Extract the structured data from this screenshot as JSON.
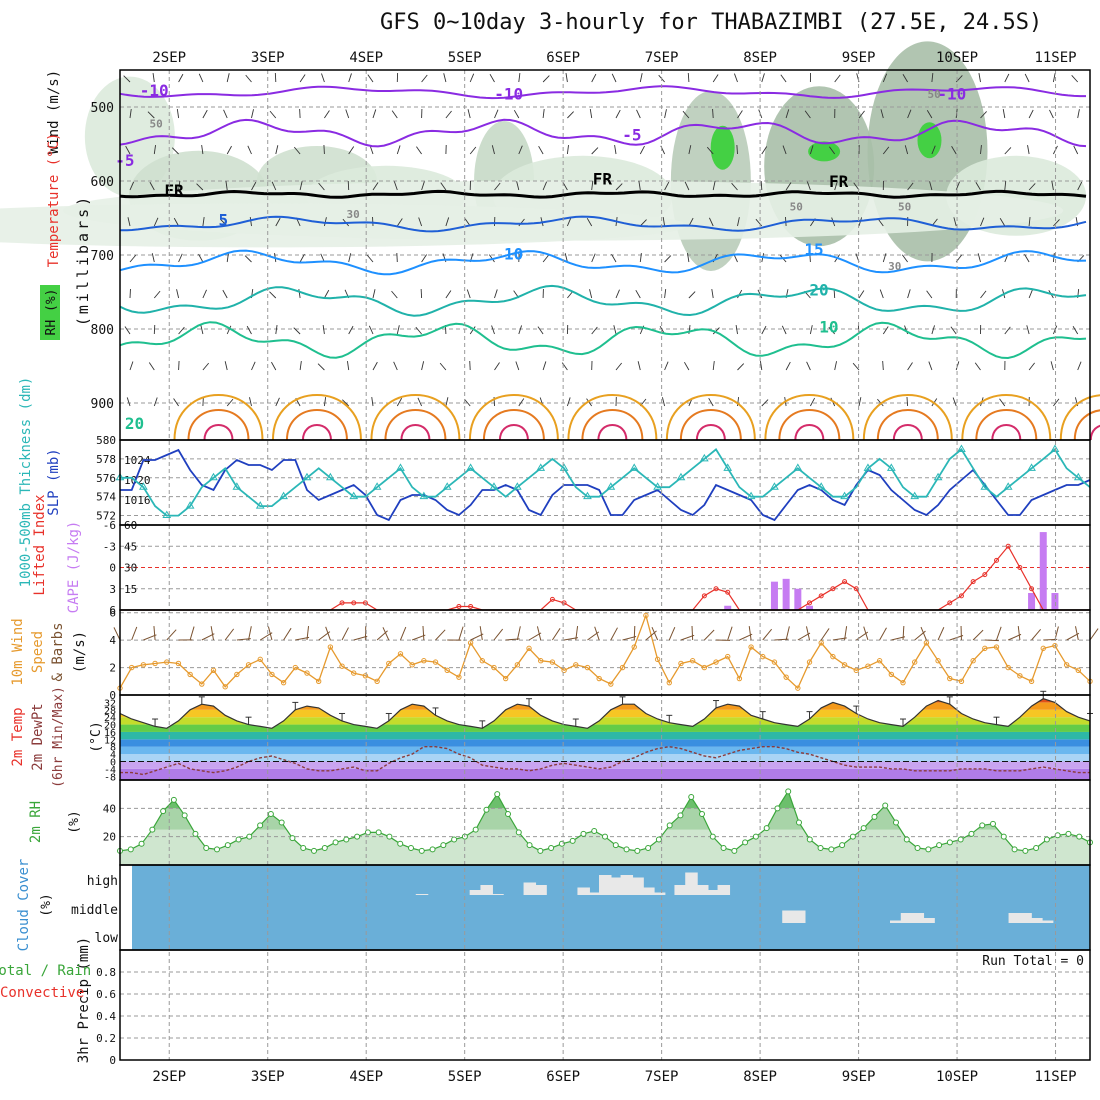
{
  "title": "GFS 0~10day 3-hourly for THABAZIMBI (27.5E, 24.5S)",
  "dates": [
    "2SEP",
    "3SEP",
    "4SEP",
    "5SEP",
    "6SEP",
    "7SEP",
    "8SEP",
    "9SEP",
    "10SEP",
    "11SEP"
  ],
  "colors": {
    "frame": "#000000",
    "grid": "#9a9a9a",
    "slp": "#1f3fbf",
    "thickness": "#2bb7b7",
    "lifted_index": "#e8312a",
    "cape": "#c67cf2",
    "wind": "#e69a2e",
    "barb": "#7a5230",
    "rh": "#3aa63a",
    "rh_fill": "#cfe6cf",
    "dewpoint": "#8b3b3b",
    "cloud_bg": "#6aafd8",
    "cloud_block": "#e8e8e8",
    "temp_label": "#e8312a",
    "rain_label": "#3aa63a",
    "conv_label": "#e8312a"
  },
  "chart_data": [
    {
      "id": "upper_air",
      "type": "contour",
      "ylabel": "(millibars)",
      "side_labels": [
        "Wind (m/s)",
        "Temperature (°C)",
        "RH (%)"
      ],
      "ylim": [
        950,
        450
      ],
      "yticks": [
        500,
        600,
        700,
        800,
        900
      ],
      "contour_labels": [
        "-10",
        "-10",
        "-5",
        "-5",
        "-10",
        "5",
        "10",
        "15",
        "20",
        "FR",
        "FR",
        "FR",
        "20",
        "10",
        "50",
        "50",
        "50",
        "50",
        "30",
        "30"
      ]
    },
    {
      "id": "slp_thickness",
      "type": "line",
      "ylabel_left": "1000-500mb Thickness (dm)",
      "ylabel_right": "SLP (mb)",
      "yticks_left": [
        572,
        574,
        576,
        578,
        580
      ],
      "yticks_right": [
        1016,
        1020,
        1024
      ],
      "series": [
        {
          "name": "SLP (mb)",
          "values": [
            1018,
            1018,
            1024,
            1024,
            1025,
            1026,
            1022,
            1019,
            1018,
            1022,
            1024,
            1023,
            1023,
            1022,
            1024,
            1024,
            1018,
            1016,
            1017,
            1018,
            1019,
            1017,
            1013,
            1012,
            1016,
            1017,
            1017,
            1016,
            1014,
            1013,
            1015,
            1018,
            1018,
            1019,
            1018,
            1014,
            1013,
            1017,
            1019,
            1019,
            1019,
            1018,
            1013,
            1013,
            1016,
            1017,
            1018,
            1016,
            1014,
            1013,
            1015,
            1019,
            1018,
            1017,
            1016,
            1013,
            1012,
            1015,
            1018,
            1019,
            1018,
            1016,
            1015,
            1019,
            1022,
            1021,
            1018,
            1016,
            1014,
            1013,
            1015,
            1018,
            1020,
            1022,
            1019,
            1016,
            1013,
            1013,
            1016,
            1017,
            1018,
            1019,
            1019,
            1020
          ]
        },
        {
          "name": "1000-500mb Thickness (dm)",
          "values": [
            576,
            576,
            575,
            573,
            572,
            572,
            573,
            575,
            576,
            577,
            575,
            574,
            573,
            573,
            574,
            575,
            576,
            577,
            576,
            575,
            574,
            574,
            575,
            576,
            577,
            575,
            574,
            574,
            575,
            576,
            577,
            576,
            575,
            574,
            575,
            576,
            577,
            578,
            577,
            575,
            574,
            574,
            575,
            576,
            577,
            576,
            575,
            575,
            576,
            577,
            578,
            579,
            577,
            575,
            574,
            574,
            575,
            576,
            577,
            576,
            575,
            574,
            574,
            575,
            577,
            578,
            577,
            575,
            574,
            574,
            576,
            578,
            579,
            577,
            575,
            574,
            575,
            576,
            577,
            578,
            579,
            577,
            576,
            575
          ]
        }
      ]
    },
    {
      "id": "cape_li",
      "type": "bar",
      "ylabel_left": "Lifted Index",
      "ylabel_right": "CAPE (J/kg)",
      "yticks_left": [
        -6,
        -3,
        0,
        3,
        6
      ],
      "yticks_right": [
        15,
        30,
        45,
        60
      ],
      "series": [
        {
          "name": "Lifted Index",
          "values": [
            6,
            6,
            6,
            6,
            6,
            6,
            6,
            6,
            6,
            6,
            6,
            6,
            6,
            6,
            6,
            6,
            6,
            6,
            6,
            5,
            5,
            5,
            6,
            6,
            6,
            6,
            6,
            6,
            6,
            5.5,
            5.5,
            6,
            6,
            6,
            6,
            6,
            6,
            4.5,
            5,
            6,
            6,
            6,
            6,
            6,
            6,
            6,
            6,
            6,
            6,
            6,
            4,
            3,
            3.5,
            6,
            6,
            6,
            6,
            6,
            6,
            5,
            4,
            3,
            2,
            3,
            6,
            6,
            6,
            6,
            6,
            6,
            6,
            5,
            4,
            2,
            1,
            -1,
            -3,
            0,
            3,
            6,
            6,
            6,
            6,
            6
          ]
        },
        {
          "name": "CAPE (J/kg)",
          "values": [
            0,
            0,
            0,
            0,
            0,
            0,
            0,
            0,
            0,
            0,
            0,
            0,
            0,
            0,
            0,
            0,
            0,
            0,
            0,
            0,
            0,
            0,
            0,
            0,
            0,
            0,
            0,
            0,
            0,
            0,
            0,
            0,
            0,
            0,
            0,
            0,
            0,
            0,
            0,
            0,
            0,
            0,
            0,
            0,
            0,
            0,
            0,
            0,
            0,
            0,
            0,
            0,
            3,
            0,
            0,
            0,
            20,
            22,
            15,
            3,
            0,
            0,
            0,
            0,
            0,
            0,
            0,
            0,
            0,
            0,
            0,
            0,
            0,
            0,
            0,
            0,
            0,
            0,
            12,
            55,
            12,
            0,
            0,
            0
          ]
        }
      ]
    },
    {
      "id": "wind10m",
      "type": "line",
      "ylabel": "10m Wind Speed & Barbs (m/s)",
      "yticks": [
        0,
        2,
        4,
        6
      ],
      "series": [
        {
          "name": "10m Wind Speed",
          "values": [
            0.5,
            2,
            2.2,
            2.3,
            2.4,
            2.3,
            1.5,
            0.8,
            1.8,
            0.6,
            1.5,
            2.2,
            2.6,
            1.5,
            0.9,
            2,
            1.6,
            1,
            3.5,
            2.1,
            1.6,
            1.4,
            1,
            2.3,
            3,
            2.2,
            2.5,
            2.4,
            1.8,
            1.3,
            3.8,
            2.5,
            2,
            1.2,
            2.2,
            3.4,
            2.5,
            2.4,
            1.8,
            2.2,
            2,
            1.2,
            0.8,
            2,
            3.5,
            5.8,
            2.6,
            0.9,
            2.3,
            2.5,
            2,
            2.4,
            2.8,
            1.2,
            3.5,
            2.8,
            2.4,
            1.3,
            0.5,
            2.4,
            3.8,
            2.8,
            2.2,
            1.8,
            2.1,
            2.5,
            1.5,
            0.9,
            2.4,
            3.8,
            2.5,
            1.2,
            1,
            2.5,
            3.4,
            3.5,
            2,
            1.4,
            1,
            3.4,
            3.6,
            2.2,
            1.8,
            1
          ]
        }
      ]
    },
    {
      "id": "temp2m",
      "type": "area",
      "ylabel": "2m Temp 2m DewPt (6hr Min/Max) (°C)",
      "yticks": [
        -8,
        -4,
        0,
        4,
        8,
        12,
        16,
        20,
        24,
        28,
        32
      ],
      "series": [
        {
          "name": "2m Temp",
          "values": [
            26,
            23,
            21,
            19,
            18,
            22,
            28,
            31,
            30,
            25,
            22,
            20,
            19,
            18,
            22,
            28,
            30,
            29,
            25,
            22,
            20,
            19,
            18,
            22,
            28,
            31,
            30,
            25,
            22,
            20,
            19,
            18,
            22,
            28,
            31,
            30,
            25,
            22,
            20,
            19,
            18,
            22,
            28,
            31,
            31,
            26,
            23,
            21,
            20,
            19,
            23,
            29,
            31,
            30,
            25,
            23,
            21,
            20,
            19,
            23,
            29,
            32,
            30,
            26,
            23,
            21,
            20,
            19,
            24,
            30,
            33,
            31,
            26,
            23,
            21,
            20,
            19,
            24,
            30,
            34,
            32,
            27,
            24,
            22
          ]
        },
        {
          "name": "2m DewPt",
          "values": [
            -6,
            -6,
            -7,
            -5,
            -3,
            -1,
            -4,
            -5,
            -6,
            -5,
            -3,
            0,
            2,
            3,
            1,
            -1,
            -4,
            -5,
            -5,
            -4,
            -3,
            -5,
            -5,
            -1,
            2,
            4,
            8,
            8,
            7,
            4,
            2,
            -2,
            -3,
            -4,
            -4,
            -5,
            -4,
            -2,
            -1,
            -2,
            -3,
            -4,
            -3,
            0,
            2,
            5,
            7,
            8,
            7,
            5,
            3,
            2,
            4,
            6,
            7,
            8,
            8,
            7,
            5,
            4,
            2,
            0,
            -2,
            -3,
            -3,
            -3,
            -4,
            -4,
            -5,
            -5,
            -5,
            -5,
            -4,
            -4,
            -4,
            -5,
            -5,
            -5,
            -4,
            -3,
            -4,
            -5,
            -6,
            -6
          ]
        }
      ]
    },
    {
      "id": "rh2m",
      "type": "area",
      "ylabel": "2m RH (%)",
      "yticks": [
        20,
        40
      ],
      "series": [
        {
          "name": "2m RH",
          "values": [
            10,
            11,
            15,
            25,
            38,
            46,
            35,
            22,
            12,
            11,
            14,
            18,
            20,
            28,
            36,
            30,
            19,
            12,
            10,
            12,
            16,
            18,
            20,
            23,
            23,
            20,
            15,
            12,
            10,
            11,
            14,
            18,
            20,
            25,
            39,
            50,
            36,
            23,
            14,
            10,
            12,
            15,
            17,
            22,
            24,
            20,
            14,
            11,
            10,
            12,
            18,
            28,
            35,
            48,
            36,
            20,
            12,
            10,
            16,
            20,
            26,
            40,
            52,
            30,
            18,
            12,
            11,
            14,
            20,
            26,
            34,
            42,
            30,
            18,
            12,
            11,
            14,
            16,
            18,
            22,
            28,
            29,
            20,
            11,
            10,
            12,
            18,
            21,
            22,
            20,
            16
          ]
        }
      ]
    },
    {
      "id": "cloud",
      "type": "bar",
      "ylabel": "Cloud Cover (%)",
      "levels": [
        "high",
        "middle",
        "low"
      ],
      "series": [
        {
          "name": "high",
          "values": [
            0,
            0,
            0,
            0,
            0,
            0,
            0,
            0,
            0,
            0,
            0,
            0,
            0,
            0,
            0,
            0,
            0,
            0,
            0,
            0,
            0,
            0,
            0,
            0,
            0,
            0,
            0,
            0,
            2,
            0,
            0,
            0,
            0,
            10,
            20,
            2,
            0,
            0,
            25,
            20,
            0,
            0,
            0,
            15,
            5,
            40,
            35,
            40,
            35,
            15,
            5,
            0,
            20,
            45,
            20,
            10,
            20,
            0,
            0,
            0,
            0,
            0,
            0,
            0,
            0,
            0,
            0,
            0,
            0,
            0,
            0,
            0,
            0,
            0,
            0,
            0,
            0,
            0,
            0,
            0,
            0,
            0,
            0,
            0,
            0,
            0,
            0,
            0,
            0,
            0,
            0
          ]
        },
        {
          "name": "middle",
          "values": [
            0,
            0,
            0,
            0,
            0,
            0,
            0,
            0,
            0,
            0,
            0,
            0,
            0,
            0,
            0,
            0,
            0,
            0,
            0,
            0,
            0,
            0,
            0,
            0,
            0,
            0,
            0,
            0,
            0,
            0,
            0,
            0,
            0,
            0,
            0,
            0,
            0,
            0,
            0,
            0,
            0,
            0,
            0,
            0,
            0,
            0,
            0,
            0,
            0,
            0,
            0,
            0,
            0,
            0,
            0,
            0,
            0,
            0,
            0,
            0,
            0,
            0,
            25,
            25,
            0,
            0,
            0,
            0,
            0,
            0,
            0,
            0,
            5,
            20,
            20,
            10,
            0,
            0,
            0,
            0,
            0,
            0,
            0,
            20,
            20,
            10,
            5,
            0,
            0,
            0,
            0
          ]
        },
        {
          "name": "low",
          "values": []
        }
      ]
    },
    {
      "id": "precip",
      "type": "bar",
      "ylabel": "3hr Precip (mm)",
      "side_labels": [
        "Total / Rain",
        "Convective"
      ],
      "yticks": [
        0,
        0.2,
        0.4,
        0.6,
        0.8
      ],
      "ylim": [
        0,
        1
      ],
      "run_total": "Run Total = 0",
      "series": [
        {
          "name": "Total / Rain",
          "values": []
        }
      ]
    }
  ]
}
